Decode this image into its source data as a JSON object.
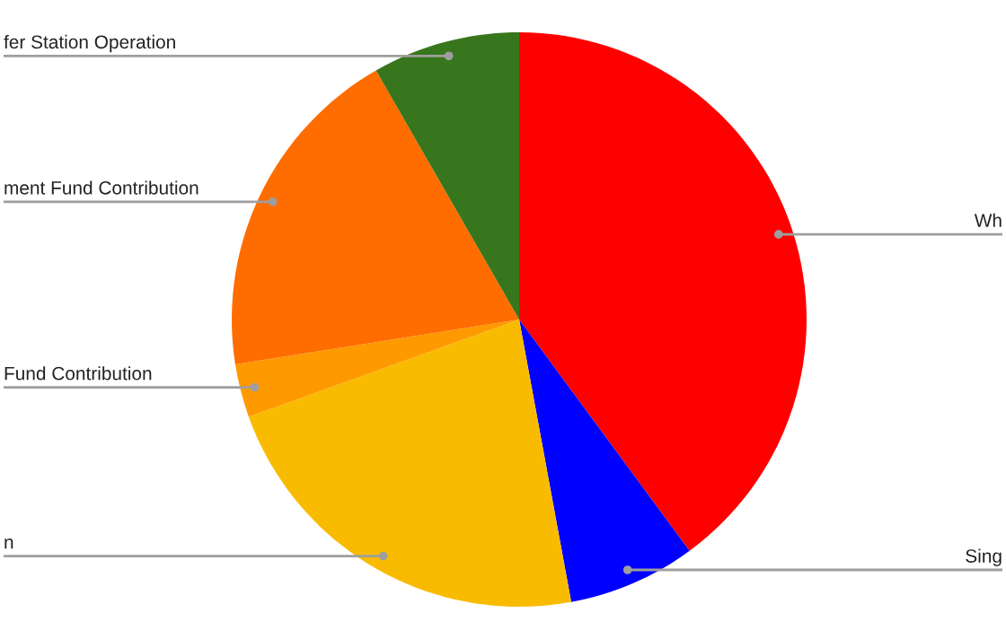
{
  "chart_data": {
    "type": "pie",
    "categories": [
      "Wh",
      "Sing",
      "n",
      "Fund Contribution",
      "ment Fund Contribution",
      "fer Station Operation"
    ],
    "values": [
      39.9,
      7.2,
      22.4,
      3.0,
      19.2,
      8.3
    ],
    "colors": [
      "#ff0000",
      "#0000ff",
      "#f9bb00",
      "#ff9900",
      "#ff6d01",
      "#38761d"
    ]
  }
}
